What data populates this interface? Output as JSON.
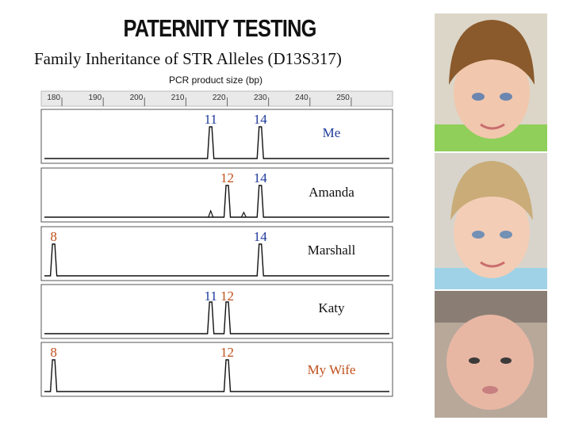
{
  "title": "PATERNITY TESTING",
  "subtitle": "Family Inheritance of STR Alleles (D13S317)",
  "chart_data": {
    "type": "electropherogram",
    "xlabel": "PCR product size (bp)",
    "xlim": [
      175,
      260
    ],
    "ticks": [
      "180",
      "190",
      "200",
      "210",
      "220",
      "230",
      "240",
      "250"
    ],
    "tick_values": [
      180,
      190,
      200,
      210,
      220,
      230,
      240,
      250
    ],
    "samples": [
      {
        "name": "Me",
        "name_color": "#1f3c9c",
        "peaks": [
          {
            "allele": "11",
            "size": 216,
            "color": "#1f3c9c"
          },
          {
            "allele": "14",
            "size": 228,
            "color": "#1f3c9c"
          }
        ]
      },
      {
        "name": "Amanda",
        "name_color": "#111111",
        "peaks": [
          {
            "allele": "12",
            "size": 220,
            "color": "#c0501b"
          },
          {
            "allele": "14",
            "size": 228,
            "color": "#1f3c9c"
          }
        ]
      },
      {
        "name": "Marshall",
        "name_color": "#111111",
        "peaks": [
          {
            "allele": "8",
            "size": 178,
            "color": "#c0501b"
          },
          {
            "allele": "14",
            "size": 228,
            "color": "#1f3c9c"
          }
        ]
      },
      {
        "name": "Katy",
        "name_color": "#111111",
        "peaks": [
          {
            "allele": "11",
            "size": 216,
            "color": "#1f3c9c"
          },
          {
            "allele": "12",
            "size": 220,
            "color": "#c0501b"
          }
        ]
      },
      {
        "name": "My Wife",
        "name_color": "#c0501b",
        "peaks": [
          {
            "allele": "8",
            "size": 178,
            "color": "#c0501b"
          },
          {
            "allele": "12",
            "size": 220,
            "color": "#c0501b"
          }
        ]
      }
    ]
  },
  "photos": [
    {
      "name": "toddler-boy-photo"
    },
    {
      "name": "toddler-photo"
    },
    {
      "name": "newborn-photo"
    }
  ]
}
